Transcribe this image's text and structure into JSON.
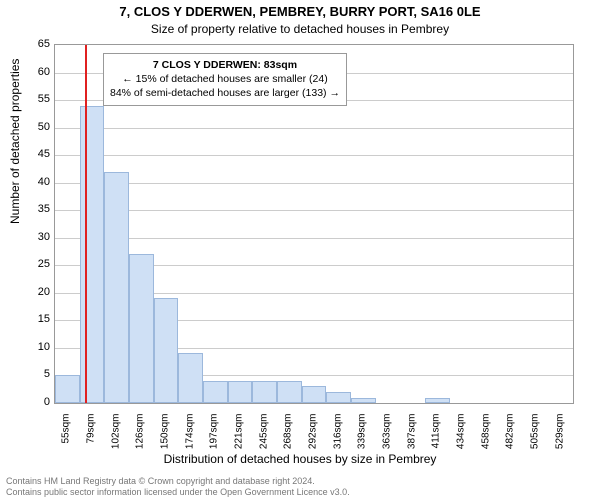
{
  "chart": {
    "type": "histogram",
    "title_main": "7, CLOS Y DDERWEN, PEMBREY, BURRY PORT, SA16 0LE",
    "title_sub": "Size of property relative to detached houses in Pembrey",
    "y_label": "Number of detached properties",
    "x_label": "Distribution of detached houses by size in Pembrey",
    "ylim": [
      0,
      65
    ],
    "ytick_step": 5,
    "background_color": "#ffffff",
    "grid_color": "#cccccc",
    "bar_fill": "#cfe0f5",
    "bar_border": "#9cb8dc",
    "reference_line_color": "#e02020",
    "reference_line_x_index": 1.2,
    "x_categories": [
      "55sqm",
      "79sqm",
      "102sqm",
      "126sqm",
      "150sqm",
      "174sqm",
      "197sqm",
      "221sqm",
      "245sqm",
      "268sqm",
      "292sqm",
      "316sqm",
      "339sqm",
      "363sqm",
      "387sqm",
      "411sqm",
      "434sqm",
      "458sqm",
      "482sqm",
      "505sqm",
      "529sqm"
    ],
    "values": [
      5,
      54,
      42,
      27,
      19,
      9,
      4,
      4,
      4,
      4,
      3,
      2,
      1,
      0,
      0,
      1,
      0,
      0,
      0,
      0,
      0
    ],
    "annotation": {
      "line1": "7 CLOS Y DDERWEN: 83sqm",
      "line2": "← 15% of detached houses are smaller (24)",
      "line3": "84% of semi-detached houses are larger (133) →"
    },
    "annotation_fontsize": 10.5,
    "title_fontsize": 13,
    "label_fontsize": 12,
    "tick_fontsize": 11
  },
  "footer": {
    "line1": "Contains HM Land Registry data © Crown copyright and database right 2024.",
    "line2": "Contains public sector information licensed under the Open Government Licence v3.0."
  }
}
